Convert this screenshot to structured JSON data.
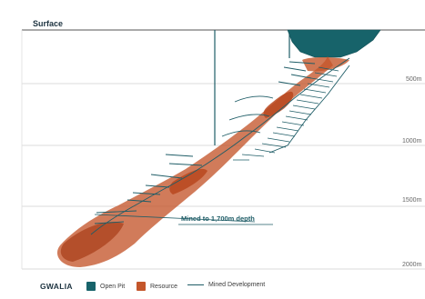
{
  "surface_label": "Surface",
  "depth_labels": [
    "500m",
    "1000m",
    "1500m",
    "2000m"
  ],
  "callout": "Mined to 1,700m depth",
  "legend": {
    "title": "GWALIA",
    "items": [
      {
        "label": "Open Pit",
        "type": "swatch",
        "color": "#17636a"
      },
      {
        "label": "Resource",
        "type": "swatch",
        "color": "#c4562b"
      },
      {
        "label": "Mined Development",
        "type": "line",
        "color": "#1f5d67"
      }
    ]
  },
  "colors": {
    "pit": "#17636a",
    "resource": "#c4562b",
    "development": "#1f5d67",
    "gridline": "#c9c9c9"
  }
}
